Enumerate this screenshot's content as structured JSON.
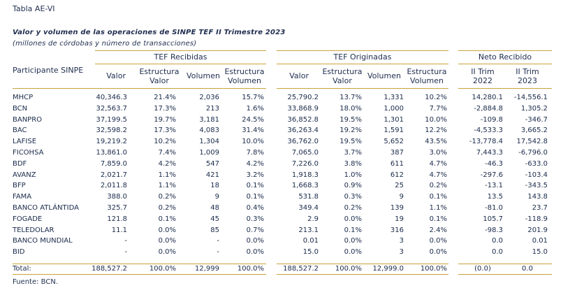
{
  "title": "Tabla AE-VI",
  "subtitle": "Valor y volumen de las operaciones de SINPE TEF II Trimestre 2023",
  "units": "(millones de córdobas y número de transacciones)",
  "groups": {
    "recibidas": "TEF Recibidas",
    "originadas": "TEF Originadas",
    "neto": "Neto Recibido"
  },
  "headers": {
    "participante": "Participante SINPE",
    "valor": "Valor",
    "estructura_valor": [
      "Estructura",
      "Valor"
    ],
    "volumen": "Volumen",
    "estructura_volumen": [
      "Estructura",
      "Volumen"
    ],
    "trim2022": [
      "II Trim",
      "2022"
    ],
    "trim2023": [
      "II Trim",
      "2023"
    ]
  },
  "rows": [
    [
      "MHCP",
      "40,346.3",
      "21.4%",
      "2,036",
      "15.7%",
      "25,790.2",
      "13.7%",
      "1,331",
      "10.2%",
      "14,280.1",
      "-14,556.1"
    ],
    [
      "BCN",
      "32,563.7",
      "17.3%",
      "213",
      "1.6%",
      "33,868.9",
      "18.0%",
      "1,000",
      "7.7%",
      "-2,884.8",
      "1,305.2"
    ],
    [
      "BANPRO",
      "37,199.5",
      "19.7%",
      "3,181",
      "24.5%",
      "36,852.8",
      "19.5%",
      "1,301",
      "10.0%",
      "-109.8",
      "-346.7"
    ],
    [
      "BAC",
      "32,598.2",
      "17.3%",
      "4,083",
      "31.4%",
      "36,263.4",
      "19.2%",
      "1,591",
      "12.2%",
      "-4,533.3",
      "3,665.2"
    ],
    [
      "LAFISE",
      "19,219.2",
      "10.2%",
      "1,304",
      "10.0%",
      "36,762.0",
      "19.5%",
      "5,652",
      "43.5%",
      "-13,778.4",
      "17,542.8"
    ],
    [
      "FICOHSA",
      "13,861.0",
      "7.4%",
      "1,009",
      "7.8%",
      "7,065.0",
      "3.7%",
      "387",
      "3.0%",
      "7,443.3",
      "-6,796.0"
    ],
    [
      "BDF",
      "7,859.0",
      "4.2%",
      "547",
      "4.2%",
      "7,226.0",
      "3.8%",
      "611",
      "4.7%",
      "-46.3",
      "-633.0"
    ],
    [
      "AVANZ",
      "2,021.7",
      "1.1%",
      "421",
      "3.2%",
      "1,918.3",
      "1.0%",
      "612",
      "4.7%",
      "-297.6",
      "-103.4"
    ],
    [
      "BFP",
      "2,011.8",
      "1.1%",
      "18",
      "0.1%",
      "1,668.3",
      "0.9%",
      "25",
      "0.2%",
      "-13.1",
      "-343.5"
    ],
    [
      "FAMA",
      "388.0",
      "0.2%",
      "9",
      "0.1%",
      "531.8",
      "0.3%",
      "9",
      "0.1%",
      "13.5",
      "143.8"
    ],
    [
      "BANCO ATLÁNTIDA",
      "325.7",
      "0.2%",
      "48",
      "0.4%",
      "349.4",
      "0.2%",
      "139",
      "1.1%",
      "-81.0",
      "23.7"
    ],
    [
      "FOGADE",
      "121.8",
      "0.1%",
      "45",
      "0.3%",
      "2.9",
      "0.0%",
      "19",
      "0.1%",
      "105.7",
      "-118.9"
    ],
    [
      "TELEDOLAR",
      "11.1",
      "0.0%",
      "85",
      "0.7%",
      "213.1",
      "0.1%",
      "316",
      "2.4%",
      "-98.3",
      "201.9"
    ],
    [
      "BANCO MUNDIAL",
      "-",
      "0.0%",
      "-",
      "0.0%",
      "0.01",
      "0.0%",
      "3",
      "0.0%",
      "0.0",
      "0.01"
    ],
    [
      "BID",
      "-",
      "0.0%",
      "-",
      "0.0%",
      "15.0",
      "0.0%",
      "3",
      "0.0%",
      "0.0",
      "15.0"
    ]
  ],
  "total": [
    "Total:",
    "188,527.2",
    "100.0%",
    "12,999",
    "100.0%",
    "188,527.2",
    "100.0%",
    "12,999.0",
    "100.0%",
    "(0.0)",
    "0.0"
  ],
  "footer": "Fuente: BCN."
}
